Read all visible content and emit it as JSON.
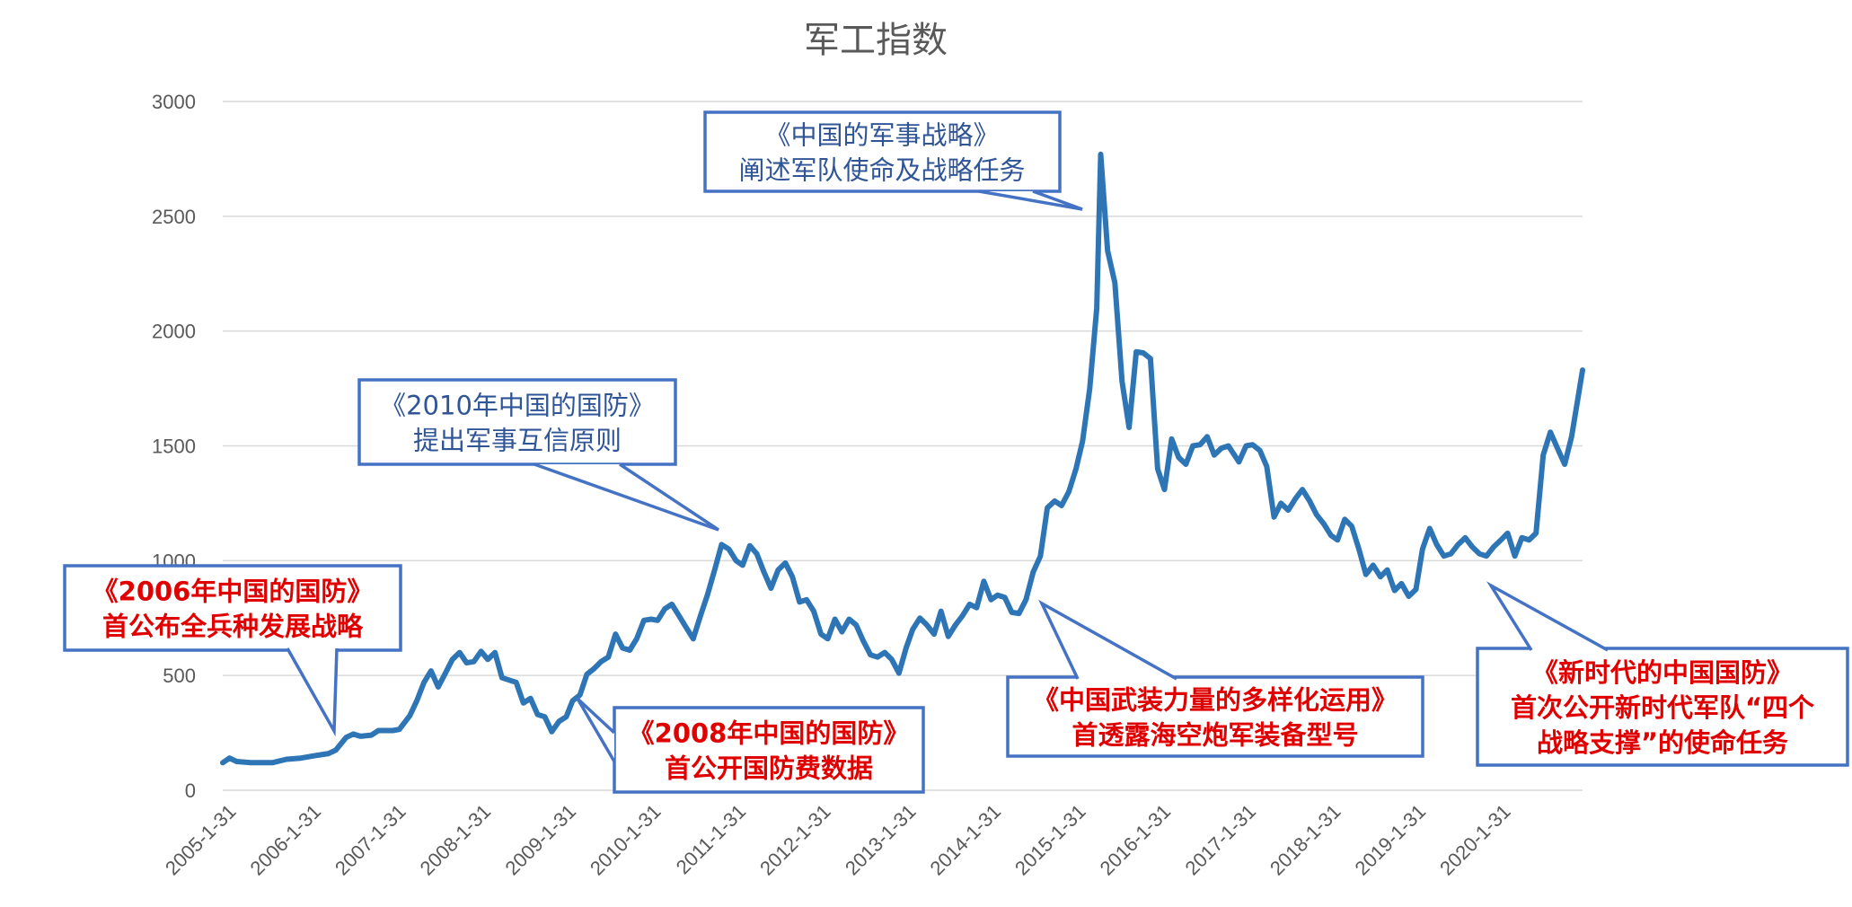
{
  "chart_data": {
    "type": "line",
    "title": "军工指数",
    "xlabel": "",
    "ylabel": "",
    "ylim": [
      0,
      3000
    ],
    "yticks": [
      0,
      500,
      1000,
      1500,
      2000,
      2500,
      3000
    ],
    "x_tick_labels": [
      "2005-1-31",
      "2006-1-31",
      "2007-1-31",
      "2008-1-31",
      "2009-1-31",
      "2010-1-31",
      "2011-1-31",
      "2012-1-31",
      "2013-1-31",
      "2014-1-31",
      "2015-1-31",
      "2016-1-31",
      "2017-1-31",
      "2018-1-31",
      "2019-1-31",
      "2020-1-31"
    ],
    "grid": true,
    "legend": "none",
    "line_color": "#2e75b6",
    "x_start": "2005-01-31",
    "x_end": "2021-01-31",
    "points": [
      [
        "2005-01-31",
        120
      ],
      [
        "2005-03-01",
        140
      ],
      [
        "2005-04-01",
        125
      ],
      [
        "2005-06-01",
        120
      ],
      [
        "2005-09-01",
        120
      ],
      [
        "2005-11-01",
        135
      ],
      [
        "2006-01-01",
        140
      ],
      [
        "2006-03-01",
        150
      ],
      [
        "2006-05-01",
        160
      ],
      [
        "2006-06-01",
        175
      ],
      [
        "2006-07-15",
        230
      ],
      [
        "2006-08-15",
        245
      ],
      [
        "2006-09-15",
        235
      ],
      [
        "2006-11-01",
        240
      ],
      [
        "2006-12-01",
        260
      ],
      [
        "2007-02-01",
        260
      ],
      [
        "2007-03-01",
        265
      ],
      [
        "2007-04-15",
        325
      ],
      [
        "2007-05-15",
        390
      ],
      [
        "2007-06-15",
        470
      ],
      [
        "2007-07-15",
        520
      ],
      [
        "2007-08-15",
        450
      ],
      [
        "2007-09-15",
        510
      ],
      [
        "2007-10-15",
        570
      ],
      [
        "2007-11-15",
        600
      ],
      [
        "2007-12-15",
        555
      ],
      [
        "2008-01-15",
        560
      ],
      [
        "2008-02-15",
        605
      ],
      [
        "2008-03-15",
        570
      ],
      [
        "2008-04-15",
        600
      ],
      [
        "2008-05-15",
        490
      ],
      [
        "2008-06-15",
        480
      ],
      [
        "2008-07-15",
        470
      ],
      [
        "2008-08-15",
        380
      ],
      [
        "2008-09-15",
        400
      ],
      [
        "2008-10-15",
        330
      ],
      [
        "2008-11-15",
        320
      ],
      [
        "2008-12-15",
        255
      ],
      [
        "2009-01-15",
        300
      ],
      [
        "2009-02-15",
        320
      ],
      [
        "2009-03-15",
        390
      ],
      [
        "2009-04-15",
        415
      ],
      [
        "2009-05-15",
        505
      ],
      [
        "2009-06-15",
        530
      ],
      [
        "2009-07-15",
        560
      ],
      [
        "2009-08-15",
        580
      ],
      [
        "2009-09-15",
        680
      ],
      [
        "2009-10-15",
        620
      ],
      [
        "2009-11-15",
        610
      ],
      [
        "2009-12-15",
        660
      ],
      [
        "2010-01-15",
        740
      ],
      [
        "2010-02-15",
        745
      ],
      [
        "2010-03-15",
        740
      ],
      [
        "2010-04-15",
        790
      ],
      [
        "2010-05-15",
        810
      ],
      [
        "2010-06-15",
        760
      ],
      [
        "2010-07-15",
        710
      ],
      [
        "2010-08-15",
        660
      ],
      [
        "2010-09-15",
        760
      ],
      [
        "2010-10-15",
        850
      ],
      [
        "2010-11-15",
        960
      ],
      [
        "2010-12-15",
        1070
      ],
      [
        "2011-01-15",
        1050
      ],
      [
        "2011-02-15",
        1000
      ],
      [
        "2011-03-15",
        980
      ],
      [
        "2011-04-15",
        1065
      ],
      [
        "2011-05-15",
        1030
      ],
      [
        "2011-06-15",
        950
      ],
      [
        "2011-07-15",
        880
      ],
      [
        "2011-08-15",
        960
      ],
      [
        "2011-09-15",
        990
      ],
      [
        "2011-10-15",
        930
      ],
      [
        "2011-11-15",
        820
      ],
      [
        "2011-12-15",
        830
      ],
      [
        "2012-01-15",
        780
      ],
      [
        "2012-02-15",
        680
      ],
      [
        "2012-03-15",
        660
      ],
      [
        "2012-04-15",
        745
      ],
      [
        "2012-05-15",
        690
      ],
      [
        "2012-06-15",
        745
      ],
      [
        "2012-07-15",
        720
      ],
      [
        "2012-08-15",
        650
      ],
      [
        "2012-09-15",
        590
      ],
      [
        "2012-10-15",
        580
      ],
      [
        "2012-11-15",
        600
      ],
      [
        "2012-12-15",
        570
      ],
      [
        "2013-01-15",
        510
      ],
      [
        "2013-02-15",
        620
      ],
      [
        "2013-03-15",
        700
      ],
      [
        "2013-04-15",
        750
      ],
      [
        "2013-05-15",
        720
      ],
      [
        "2013-06-15",
        680
      ],
      [
        "2013-07-15",
        780
      ],
      [
        "2013-08-15",
        670
      ],
      [
        "2013-09-15",
        720
      ],
      [
        "2013-10-15",
        760
      ],
      [
        "2013-11-15",
        810
      ],
      [
        "2013-12-15",
        795
      ],
      [
        "2014-01-15",
        910
      ],
      [
        "2014-02-15",
        830
      ],
      [
        "2014-03-15",
        850
      ],
      [
        "2014-04-15",
        840
      ],
      [
        "2014-05-15",
        775
      ],
      [
        "2014-06-15",
        770
      ],
      [
        "2014-07-15",
        830
      ],
      [
        "2014-08-15",
        950
      ],
      [
        "2014-09-15",
        1020
      ],
      [
        "2014-10-15",
        1230
      ],
      [
        "2014-11-15",
        1260
      ],
      [
        "2014-12-15",
        1240
      ],
      [
        "2015-01-15",
        1300
      ],
      [
        "2015-02-15",
        1400
      ],
      [
        "2015-03-15",
        1520
      ],
      [
        "2015-04-15",
        1750
      ],
      [
        "2015-05-15",
        2100
      ],
      [
        "2015-06-01",
        2770
      ],
      [
        "2015-07-01",
        2350
      ],
      [
        "2015-08-01",
        2210
      ],
      [
        "2015-09-01",
        1780
      ],
      [
        "2015-10-01",
        1580
      ],
      [
        "2015-11-01",
        1910
      ],
      [
        "2015-12-01",
        1905
      ],
      [
        "2016-01-01",
        1880
      ],
      [
        "2016-02-01",
        1400
      ],
      [
        "2016-03-01",
        1310
      ],
      [
        "2016-04-01",
        1530
      ],
      [
        "2016-05-01",
        1450
      ],
      [
        "2016-06-01",
        1420
      ],
      [
        "2016-07-01",
        1500
      ],
      [
        "2016-08-01",
        1505
      ],
      [
        "2016-09-01",
        1540
      ],
      [
        "2016-10-01",
        1460
      ],
      [
        "2016-11-01",
        1490
      ],
      [
        "2016-12-01",
        1500
      ],
      [
        "2017-01-15",
        1430
      ],
      [
        "2017-02-15",
        1500
      ],
      [
        "2017-03-15",
        1505
      ],
      [
        "2017-04-15",
        1480
      ],
      [
        "2017-05-15",
        1410
      ],
      [
        "2017-06-15",
        1190
      ],
      [
        "2017-07-15",
        1250
      ],
      [
        "2017-08-15",
        1220
      ],
      [
        "2017-09-15",
        1270
      ],
      [
        "2017-10-15",
        1310
      ],
      [
        "2017-11-15",
        1260
      ],
      [
        "2017-12-15",
        1200
      ],
      [
        "2018-01-15",
        1160
      ],
      [
        "2018-02-15",
        1110
      ],
      [
        "2018-03-15",
        1090
      ],
      [
        "2018-04-15",
        1180
      ],
      [
        "2018-05-15",
        1150
      ],
      [
        "2018-06-15",
        1050
      ],
      [
        "2018-07-15",
        940
      ],
      [
        "2018-08-15",
        980
      ],
      [
        "2018-09-15",
        930
      ],
      [
        "2018-10-15",
        960
      ],
      [
        "2018-11-15",
        870
      ],
      [
        "2018-12-15",
        900
      ],
      [
        "2019-01-15",
        845
      ],
      [
        "2019-02-15",
        875
      ],
      [
        "2019-03-15",
        1050
      ],
      [
        "2019-04-15",
        1140
      ],
      [
        "2019-05-15",
        1070
      ],
      [
        "2019-06-15",
        1020
      ],
      [
        "2019-07-15",
        1030
      ],
      [
        "2019-08-15",
        1070
      ],
      [
        "2019-09-15",
        1100
      ],
      [
        "2019-10-15",
        1060
      ],
      [
        "2019-11-15",
        1030
      ],
      [
        "2019-12-15",
        1020
      ],
      [
        "2020-01-15",
        1060
      ],
      [
        "2020-02-15",
        1090
      ],
      [
        "2020-03-15",
        1120
      ],
      [
        "2020-04-15",
        1020
      ],
      [
        "2020-05-15",
        1100
      ],
      [
        "2020-06-15",
        1090
      ],
      [
        "2020-07-15",
        1120
      ],
      [
        "2020-08-15",
        1460
      ],
      [
        "2020-09-15",
        1560
      ],
      [
        "2020-10-15",
        1490
      ],
      [
        "2020-11-15",
        1420
      ],
      [
        "2020-12-15",
        1540
      ],
      [
        "2021-01-31",
        1830
      ]
    ],
    "annotations": [
      {
        "id": "a2006",
        "lines": [
          "《2006年中国的国防》",
          "首公布全兵种发展战略"
        ],
        "style": "red"
      },
      {
        "id": "a2008",
        "lines": [
          "《2008年中国的国防》",
          "首公开国防费数据"
        ],
        "style": "red"
      },
      {
        "id": "a2010",
        "lines": [
          "《2010年中国的国防》",
          "提出军事互信原则"
        ],
        "style": "blue"
      },
      {
        "id": "a2015",
        "lines": [
          "《中国的军事战略》",
          "阐述军队使命及战略任务"
        ],
        "style": "blue"
      },
      {
        "id": "a2013",
        "lines": [
          "《中国武装力量的多样化运用》",
          "首透露海空炮军装备型号"
        ],
        "style": "red"
      },
      {
        "id": "a2019",
        "lines": [
          "《新时代的中国国防》",
          "首次公开新时代军队“四个",
          "战略支撑”的使命任务"
        ],
        "style": "red"
      }
    ]
  }
}
